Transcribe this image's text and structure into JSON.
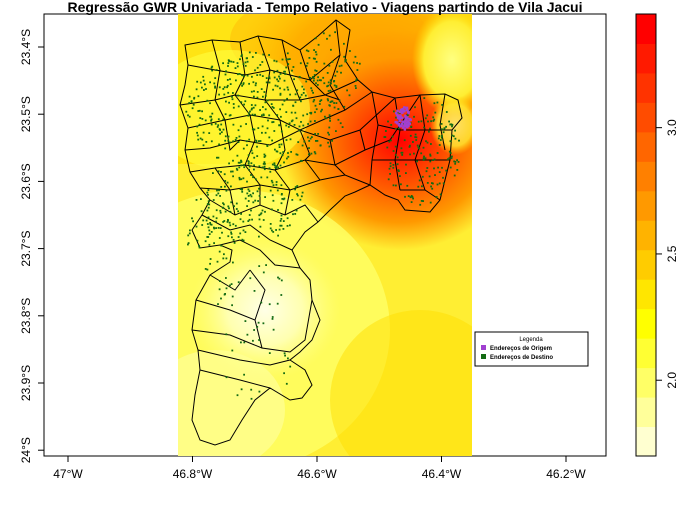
{
  "title": "Regressão GWR Univariada - Tempo Relativo - Viagens partindo de Vila Jacui",
  "x_axis": {
    "ticks": [
      {
        "value": -47.0,
        "label": "47°W"
      },
      {
        "value": -46.8,
        "label": "46.8°W"
      },
      {
        "value": -46.6,
        "label": "46.6°W"
      },
      {
        "value": -46.4,
        "label": "46.4°W"
      },
      {
        "value": -46.2,
        "label": "46.2°W"
      }
    ]
  },
  "y_axis": {
    "ticks": [
      {
        "value": -23.4,
        "label": "23.4°S"
      },
      {
        "value": -23.5,
        "label": "23.5°S"
      },
      {
        "value": -23.6,
        "label": "23.6°S"
      },
      {
        "value": -23.7,
        "label": "23.7°S"
      },
      {
        "value": -23.8,
        "label": "23.8°S"
      },
      {
        "value": -23.9,
        "label": "23.9°S"
      },
      {
        "value": -24.0,
        "label": "24°S"
      }
    ]
  },
  "legend": {
    "title": "Legenda",
    "items": [
      {
        "label": "Endereços de Origem",
        "color": "#a040d0"
      },
      {
        "label": "Endereços de Destino",
        "color": "#136b13"
      }
    ]
  },
  "colorbar": {
    "ticks": [
      {
        "value": 2.0,
        "label": "2.0"
      },
      {
        "value": 2.5,
        "label": "2.5"
      },
      {
        "value": 3.0,
        "label": "3.0"
      }
    ],
    "colors": [
      "#ffffd0",
      "#ffff9a",
      "#ffff66",
      "#ffff33",
      "#ffff00",
      "#ffe600",
      "#ffcc00",
      "#ffb300",
      "#ff9900",
      "#ff8000",
      "#ff6600",
      "#ff4c00",
      "#ff3300",
      "#ff1a00",
      "#ff0000"
    ],
    "min": 1.7,
    "max": 3.45
  }
}
